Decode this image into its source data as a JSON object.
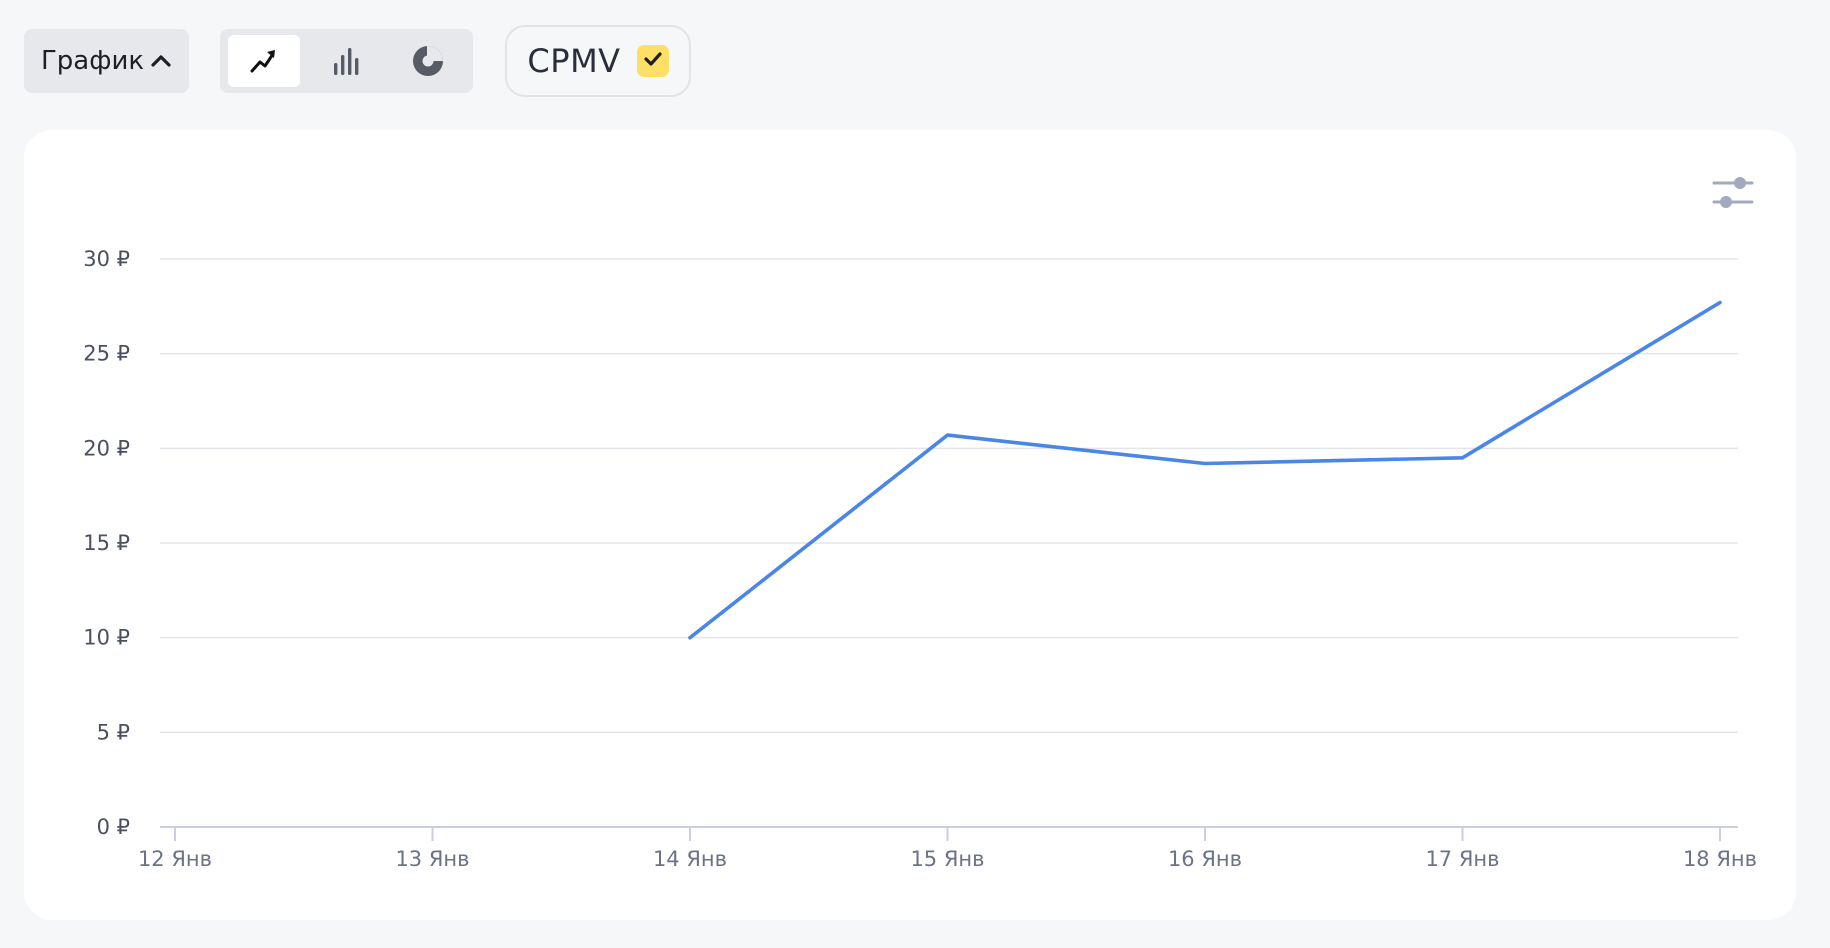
{
  "toolbar": {
    "view_dropdown_label": "График",
    "chart_types": [
      {
        "name": "line",
        "icon": "line-chart-icon",
        "active": true
      },
      {
        "name": "bar",
        "icon": "bar-chart-icon",
        "active": false
      },
      {
        "name": "pie",
        "icon": "pie-chart-icon",
        "active": false
      }
    ],
    "metric_chip": {
      "label": "CPMV",
      "checked": true
    }
  },
  "chart_controls": {
    "icon": "sliders-icon"
  },
  "colors": {
    "line": "#4a86e8",
    "grid": "#e3e5ea",
    "axis": "#c9cfe0",
    "checkbox": "#ffdf66"
  },
  "chart_data": {
    "type": "line",
    "x": [
      "12 Янв",
      "13 Янв",
      "14 Янв",
      "15 Янв",
      "16 Янв",
      "17 Янв",
      "18 Янв"
    ],
    "series": [
      {
        "values": [
          null,
          null,
          10,
          20.7,
          19.2,
          19.5,
          27.7
        ]
      }
    ],
    "yticks": [
      "0 ₽",
      "5 ₽",
      "10 ₽",
      "15 ₽",
      "20 ₽",
      "25 ₽",
      "30 ₽"
    ],
    "ylim": [
      0,
      30
    ],
    "grid": true
  }
}
